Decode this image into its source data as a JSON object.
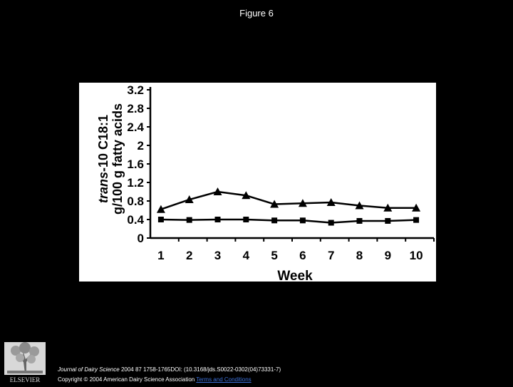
{
  "page": {
    "title": "Figure 6",
    "footer": {
      "journal": "Journal of Dairy Science",
      "citation": " 2004 87 1758-1765DOI: (10.3168/jds.S0022-0302(04)73331-7)",
      "copyright": "Copyright © 2004 American Dairy Science Association",
      "terms_link": "Terms and Conditions"
    },
    "logo": {
      "icon": "elsevier-tree-icon",
      "label": "ELSEVIER"
    }
  },
  "chart_data": {
    "type": "line",
    "title": "",
    "xlabel": "Week",
    "ylabel_line1_italic": "trans",
    "ylabel_line1_rest": "-10 C18:1",
    "ylabel_line2": "g/100 g fatty acids",
    "categories": [
      "1",
      "2",
      "3",
      "4",
      "5",
      "6",
      "7",
      "8",
      "9",
      "10"
    ],
    "yticks": [
      "0",
      "0.4",
      "0.8",
      "1.2",
      "1.6",
      "2",
      "2.4",
      "2.8",
      "3.2"
    ],
    "ylim": [
      0,
      3.2
    ],
    "grid": false,
    "series": [
      {
        "marker": "triangle",
        "color": "#000000",
        "values": [
          0.62,
          0.83,
          1.0,
          0.92,
          0.73,
          0.75,
          0.77,
          0.7,
          0.65,
          0.65
        ]
      },
      {
        "marker": "square",
        "color": "#000000",
        "values": [
          0.4,
          0.39,
          0.4,
          0.4,
          0.38,
          0.38,
          0.33,
          0.37,
          0.37,
          0.39
        ]
      }
    ]
  }
}
